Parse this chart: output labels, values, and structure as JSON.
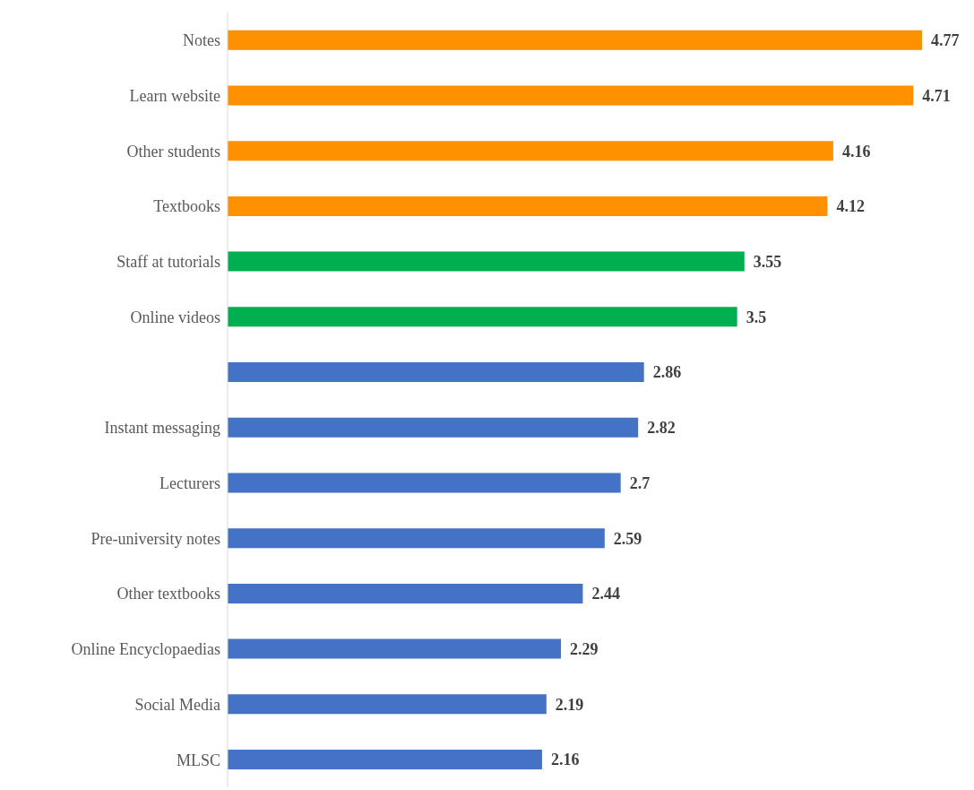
{
  "chart_data": {
    "type": "bar",
    "orientation": "horizontal",
    "categories": [
      "Notes",
      "Learn website",
      "Other students",
      "Textbooks",
      "Staff at tutorials",
      "Online videos",
      null,
      "Instant messaging",
      "Lecturers",
      "Pre-university notes",
      "Other textbooks",
      "Online Encyclopaedias",
      "Social Media",
      "MLSC"
    ],
    "values": [
      4.77,
      4.71,
      4.16,
      4.12,
      3.55,
      3.5,
      2.86,
      2.82,
      2.7,
      2.59,
      2.44,
      2.29,
      2.19,
      2.16
    ],
    "colors": [
      "#ff9100",
      "#ff9100",
      "#ff9100",
      "#ff9100",
      "#00b050",
      "#00b050",
      "#4472c4",
      "#4472c4",
      "#4472c4",
      "#4472c4",
      "#4472c4",
      "#4472c4",
      "#4472c4",
      "#4472c4"
    ],
    "data_labels": true,
    "tick_labels": "y"
  }
}
